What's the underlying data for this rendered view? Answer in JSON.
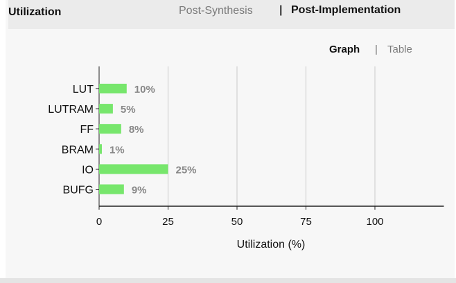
{
  "header": {
    "title": "Utilization",
    "tabs": [
      {
        "label": "Post-Synthesis",
        "active": false
      },
      {
        "label": "Post-Implementation",
        "active": true
      }
    ],
    "separator": "|"
  },
  "view_toggle": {
    "graph_label": "Graph",
    "separator": "|",
    "table_label": "Table",
    "active": "Graph"
  },
  "colors": {
    "bar": "#77e66c",
    "data_label": "#888888",
    "grid": "#c8c8c8"
  },
  "chart_data": {
    "type": "bar",
    "orientation": "horizontal",
    "categories": [
      "LUT",
      "LUTRAM",
      "FF",
      "BRAM",
      "IO",
      "BUFG"
    ],
    "values": [
      10,
      5,
      8,
      1,
      25,
      9
    ],
    "data_labels": [
      "10%",
      "5%",
      "8%",
      "1%",
      "25%",
      "9%"
    ],
    "xlabel": "Utilization (%)",
    "xticks": [
      0,
      25,
      50,
      75,
      100
    ],
    "xlim": [
      0,
      125
    ],
    "grid": true
  }
}
